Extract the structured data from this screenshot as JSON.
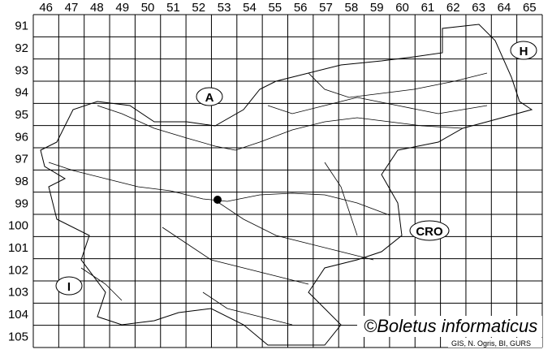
{
  "map": {
    "columns": [
      "46",
      "47",
      "48",
      "49",
      "50",
      "51",
      "52",
      "53",
      "54",
      "55",
      "56",
      "57",
      "58",
      "59",
      "60",
      "61",
      "62",
      "63",
      "64",
      "65"
    ],
    "rows": [
      "91",
      "92",
      "93",
      "94",
      "95",
      "96",
      "97",
      "98",
      "99",
      "100",
      "101",
      "102",
      "103",
      "104",
      "105"
    ],
    "regions": [
      {
        "code": "A",
        "name_shown": "A"
      },
      {
        "code": "H",
        "name_shown": "H"
      },
      {
        "code": "CRO",
        "name_shown": "CRO"
      },
      {
        "code": "I",
        "name_shown": "I"
      }
    ],
    "records": [
      {
        "column": "53",
        "row": "99",
        "marker": "filled-dot"
      }
    ],
    "watermark": "©Boletus informaticus",
    "source": "GIS, N. Ogris, BI, GURS",
    "colors": {
      "lines": "#000000",
      "background": "#ffffff"
    }
  }
}
